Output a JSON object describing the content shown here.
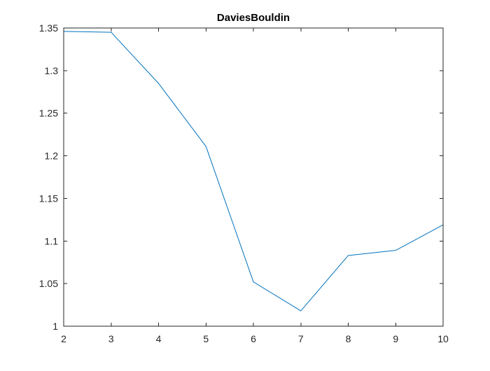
{
  "chart_data": {
    "type": "line",
    "title": "DaviesBouldin",
    "xlabel": "",
    "ylabel": "",
    "xlim": [
      2,
      10
    ],
    "ylim": [
      1,
      1.35
    ],
    "xticks": [
      2,
      3,
      4,
      5,
      6,
      7,
      8,
      9,
      10
    ],
    "xtick_labels": [
      "2",
      "3",
      "4",
      "5",
      "6",
      "7",
      "8",
      "9",
      "10"
    ],
    "yticks": [
      1,
      1.05,
      1.1,
      1.15,
      1.2,
      1.25,
      1.3,
      1.35
    ],
    "ytick_labels": [
      "1",
      "1.05",
      "1.1",
      "1.15",
      "1.2",
      "1.25",
      "1.3",
      "1.35"
    ],
    "grid": false,
    "series": [
      {
        "color": "#0072BD",
        "x": [
          2,
          3,
          4,
          5,
          6,
          7,
          8,
          9,
          10
        ],
        "y": [
          1.346,
          1.345,
          1.285,
          1.211,
          1.052,
          1.018,
          1.083,
          1.089,
          1.119
        ]
      }
    ]
  }
}
